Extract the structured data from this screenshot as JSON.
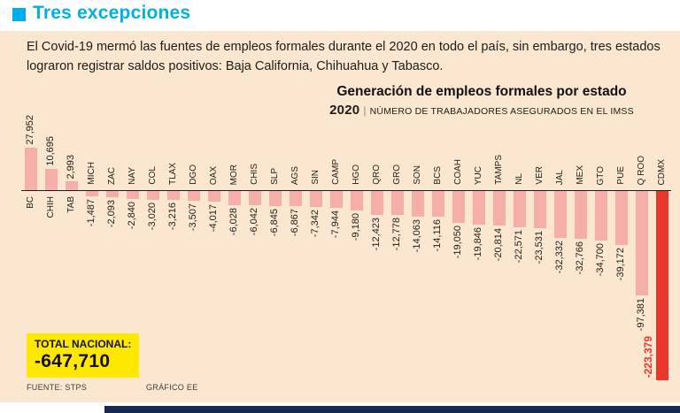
{
  "page": {
    "title": "Tres excepciones",
    "title_color": "#00B2DE",
    "accent_square_color": "#00AEEF",
    "background_color": "#FBE6D0",
    "intro": "El Covid-19 mermó las fuentes de empleos formales durante el 2020 en todo el país, sin embargo, tres estados lograron registrar saldos positivos: Baja California, Chihuahua y Tabasco."
  },
  "chart": {
    "title": "Generación de empleos formales por estado",
    "subtitle_year": "2020",
    "subtitle_sep": "|",
    "subtitle_rest": "NÚMERO DE TRABAJADORES ASEGURADOS EN EL IMSS"
  },
  "chart_data": {
    "type": "bar",
    "title": "Generación de empleos formales por estado 2020",
    "ylabel": "Número de trabajadores asegurados en el IMSS",
    "legend": "none",
    "grid": false,
    "bar_color": "#F5AFA8",
    "highlight_color": "#E8372D",
    "highlight_category": "CDMX",
    "categories": [
      "BC",
      "CHIH",
      "TAB",
      "MICH",
      "ZAC",
      "NAY",
      "COL",
      "TLAX",
      "DGO",
      "OAX",
      "MOR",
      "CHIS",
      "SLP",
      "AGS",
      "SIN",
      "CAMP",
      "HGO",
      "QRO",
      "GRO",
      "SON",
      "BCS",
      "COAH",
      "YUC",
      "TAMPS",
      "NL",
      "VER",
      "JAL",
      "MEX",
      "GTO",
      "PUE",
      "Q ROO",
      "CDMX"
    ],
    "values": [
      27952,
      10695,
      2993,
      -1487,
      -2093,
      -2840,
      -3020,
      -3216,
      -3507,
      -4017,
      -6028,
      -6042,
      -6845,
      -6867,
      -7342,
      -7944,
      -9180,
      -12423,
      -12778,
      -14063,
      -14116,
      -19050,
      -19846,
      -20814,
      -22571,
      -23531,
      -32332,
      -32766,
      -34700,
      -39172,
      -97381,
      -223379
    ],
    "labels": [
      "27,952",
      "10,695",
      "2,993",
      "-1,487",
      "-2,093",
      "-2,840",
      "-3,020",
      "-3,216",
      "-3,507",
      "-4,017",
      "-6,028",
      "-6,042",
      "-6,845",
      "-6,867",
      "-7,342",
      "-7,944",
      "-9,180",
      "-12,423",
      "-12,778",
      "-14,063",
      "-14,116",
      "-19,050",
      "-19,846",
      "-20,814",
      "-22,571",
      "-23,531",
      "-32,332",
      "-32,766",
      "-34,700",
      "-39,172",
      "-97,381",
      "-223,379"
    ]
  },
  "total": {
    "label": "TOTAL NACIONAL:",
    "value": "-647,710",
    "box_color": "#FFE800"
  },
  "footer": {
    "source": "FUENTE: STPS",
    "credit": "GRÁFICO EE"
  }
}
